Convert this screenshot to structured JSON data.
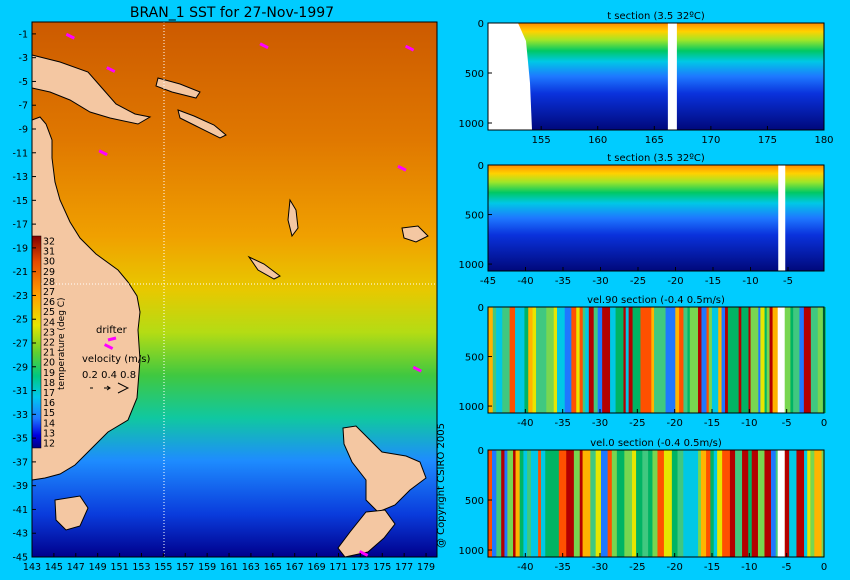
{
  "title": "BRAN_1 SST for 27-Nov-1997",
  "copyright": "@ Copyright CSIRO 2005",
  "colors": {
    "background": "#00ccff",
    "land": "#f4c7a2",
    "drifter": "#ff00ff",
    "missing": "#ffffff",
    "palette": [
      "#000080",
      "#0000c8",
      "#0a3cff",
      "#1e96ff",
      "#00d2f0",
      "#00c864",
      "#78dc28",
      "#e6e600",
      "#ffc800",
      "#ff8c00",
      "#e65000",
      "#b41e00",
      "#800000"
    ]
  },
  "map": {
    "x_ticks": [
      "143",
      "145",
      "147",
      "149",
      "151",
      "153",
      "155",
      "157",
      "159",
      "161",
      "163",
      "165",
      "167",
      "169",
      "171",
      "173",
      "175",
      "177",
      "179"
    ],
    "y_ticks": [
      "-1",
      "-3",
      "-5",
      "-7",
      "-9",
      "-11",
      "-13",
      "-15",
      "-17",
      "-19",
      "-21",
      "-23",
      "-25",
      "-27",
      "-29",
      "-31",
      "-33",
      "-35",
      "-37",
      "-39",
      "-41",
      "-43",
      "-45"
    ],
    "lon_range": [
      143,
      180
    ],
    "lat_range": [
      -45,
      0
    ],
    "section_lon": 155,
    "section_lat": -22,
    "colorbar": {
      "label": "temperature (deg C)",
      "ticks": [
        "32",
        "31",
        "30",
        "29",
        "28",
        "27",
        "26",
        "25",
        "24",
        "23",
        "22",
        "21",
        "20",
        "19",
        "18",
        "17",
        "16",
        "15",
        "14",
        "13",
        "12"
      ],
      "range": [
        12,
        32
      ]
    },
    "drifter_label": "drifter",
    "velocity_label": "velocity (m/s)",
    "velocity_scale": "0.2 0.4 0.8",
    "drifters": [
      {
        "lon": 146.5,
        "lat": -1.2
      },
      {
        "lon": 150.2,
        "lat": -4.0
      },
      {
        "lon": 164.2,
        "lat": -2.0
      },
      {
        "lon": 177.5,
        "lat": -2.2
      },
      {
        "lon": 149.5,
        "lat": -11.0
      },
      {
        "lon": 176.8,
        "lat": -12.3
      },
      {
        "lon": 150.0,
        "lat": -27.3
      },
      {
        "lon": 178.2,
        "lat": -29.2
      },
      {
        "lon": 173.3,
        "lat": -44.7
      }
    ]
  },
  "chart_data": [
    {
      "type": "heatmap",
      "title": "t section (3.5      32ºC)",
      "x_ticks": [
        "155",
        "160",
        "165",
        "170",
        "175",
        "180"
      ],
      "xlim": [
        150.3,
        180
      ],
      "y_ticks": [
        "0",
        "500",
        "1000"
      ],
      "ylim": [
        0,
        1070
      ],
      "variable": "temperature",
      "clim": [
        3.5,
        32
      ]
    },
    {
      "type": "heatmap",
      "title": "t section (3.5      32ºC)",
      "x_ticks": [
        "-45",
        "-40",
        "-35",
        "-30",
        "-25",
        "-20",
        "-15",
        "-10",
        "-5"
      ],
      "xlim": [
        -45,
        -0.2
      ],
      "y_ticks": [
        "0",
        "500",
        "1000"
      ],
      "ylim": [
        0,
        1070
      ],
      "variable": "temperature",
      "clim": [
        3.5,
        32
      ]
    },
    {
      "type": "heatmap",
      "title": "vel.90 section (-0.4      0.5m/s)",
      "x_ticks": [
        "-40",
        "-35",
        "-30",
        "-25",
        "-20",
        "-15",
        "-10",
        "-5",
        "0"
      ],
      "xlim": [
        -45,
        0
      ],
      "y_ticks": [
        "0",
        "500",
        "1000"
      ],
      "ylim": [
        0,
        1070
      ],
      "variable": "velocity",
      "clim": [
        -0.4,
        0.5
      ]
    },
    {
      "type": "heatmap",
      "title": "vel.0 section (-0.4      0.5m/s)",
      "x_ticks": [
        "-40",
        "-35",
        "-30",
        "-25",
        "-20",
        "-15",
        "-10",
        "-5",
        "0"
      ],
      "xlim": [
        -45,
        0
      ],
      "y_ticks": [
        "0",
        "500",
        "1000"
      ],
      "ylim": [
        0,
        1070
      ],
      "variable": "velocity",
      "clim": [
        -0.4,
        0.5
      ]
    }
  ]
}
